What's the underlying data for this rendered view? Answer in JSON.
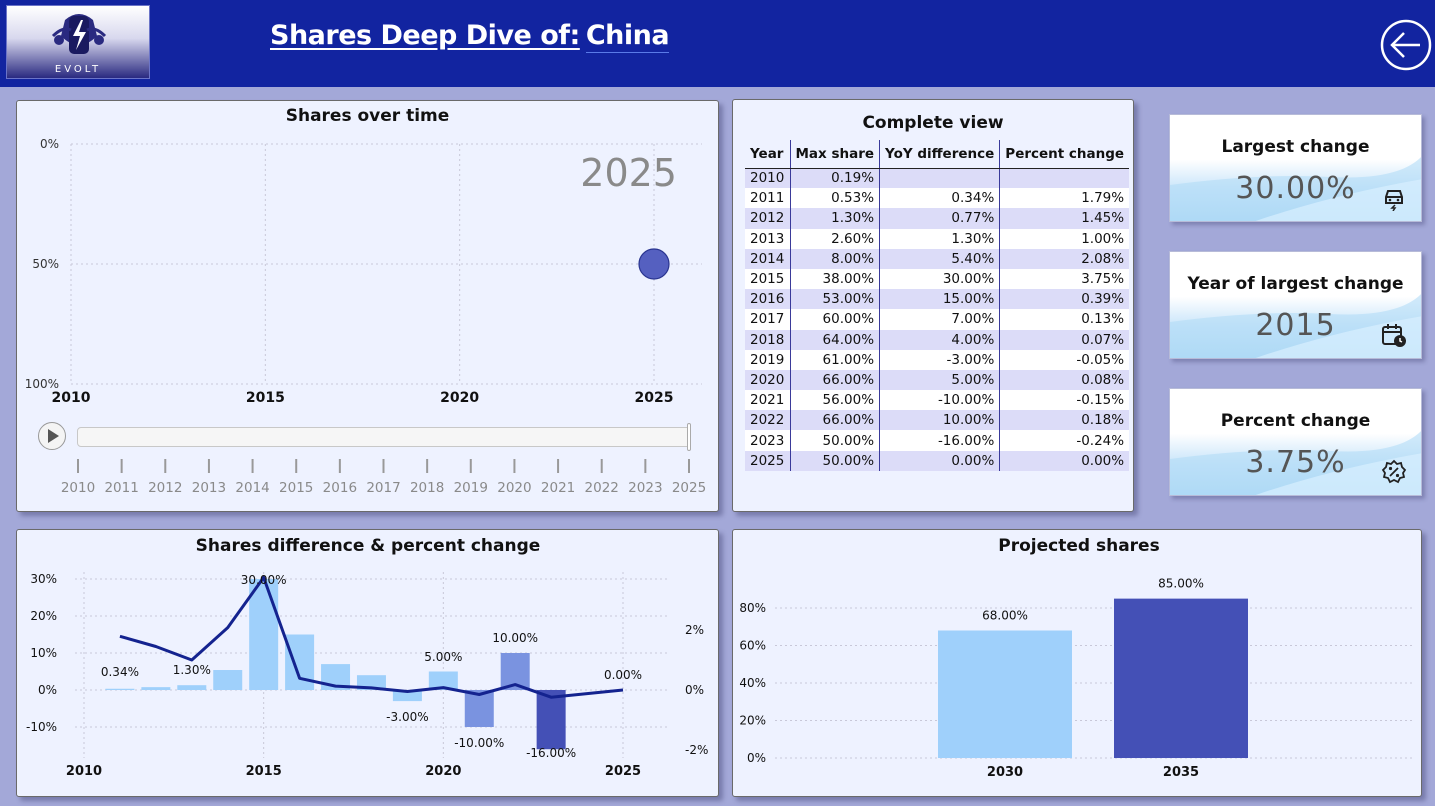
{
  "header": {
    "logo_text": "EVOLT",
    "title_prefix": "Shares Deep Dive of:",
    "country": "China",
    "back_button": "back-arrow-icon"
  },
  "shares_over_time": {
    "title": "Shares over time",
    "current_year": "2025",
    "y_ticks": [
      "100%",
      "50%",
      "0%"
    ],
    "x_ticks": [
      "2010",
      "2015",
      "2020",
      "2025"
    ],
    "timeline_years": [
      "2010",
      "2011",
      "2012",
      "2013",
      "2014",
      "2015",
      "2016",
      "2017",
      "2018",
      "2019",
      "2020",
      "2021",
      "2022",
      "2023",
      "2025"
    ],
    "point": {
      "year": 2025,
      "share": 50
    },
    "play_button": "play-icon"
  },
  "complete_view": {
    "title": "Complete view",
    "columns": [
      "Year",
      "Max share",
      "YoY difference",
      "Percent change"
    ],
    "rows": [
      [
        "2010",
        "0.19%",
        "",
        ""
      ],
      [
        "2011",
        "0.53%",
        "0.34%",
        "1.79%"
      ],
      [
        "2012",
        "1.30%",
        "0.77%",
        "1.45%"
      ],
      [
        "2013",
        "2.60%",
        "1.30%",
        "1.00%"
      ],
      [
        "2014",
        "8.00%",
        "5.40%",
        "2.08%"
      ],
      [
        "2015",
        "38.00%",
        "30.00%",
        "3.75%"
      ],
      [
        "2016",
        "53.00%",
        "15.00%",
        "0.39%"
      ],
      [
        "2017",
        "60.00%",
        "7.00%",
        "0.13%"
      ],
      [
        "2018",
        "64.00%",
        "4.00%",
        "0.07%"
      ],
      [
        "2019",
        "61.00%",
        "-3.00%",
        "-0.05%"
      ],
      [
        "2020",
        "66.00%",
        "5.00%",
        "0.08%"
      ],
      [
        "2021",
        "56.00%",
        "-10.00%",
        "-0.15%"
      ],
      [
        "2022",
        "66.00%",
        "10.00%",
        "0.18%"
      ],
      [
        "2023",
        "50.00%",
        "-16.00%",
        "-0.24%"
      ],
      [
        "2025",
        "50.00%",
        "0.00%",
        "0.00%"
      ]
    ]
  },
  "kpis": {
    "largest_change": {
      "label": "Largest change",
      "value": "30.00%",
      "icon": "car-charging-icon"
    },
    "year_largest": {
      "label": "Year of largest change",
      "value": "2015",
      "icon": "calendar-clock-icon"
    },
    "percent_change": {
      "label": "Percent change",
      "value": "3.75%",
      "icon": "percent-badge-icon"
    }
  },
  "colors": {
    "header_bg": "#1224a0",
    "bar_light": "#9fd0fb",
    "bar_mid": "#7a93e0",
    "bar_dark": "#4450b6",
    "line": "#14238f",
    "dot": "#5560c0"
  },
  "chart_data": [
    {
      "type": "scatter",
      "title": "Shares over time",
      "x": [
        2025
      ],
      "y": [
        50
      ],
      "xlim": [
        2010,
        2025
      ],
      "ylim": [
        0,
        100
      ],
      "x_ticks": [
        "2010",
        "2015",
        "2020",
        "2025"
      ],
      "y_ticks": [
        "0%",
        "50%",
        "100%"
      ],
      "annotation": "2025",
      "grid": true
    },
    {
      "type": "bar",
      "title": "Shares difference & percent change",
      "x": [
        2011,
        2012,
        2013,
        2014,
        2015,
        2016,
        2017,
        2018,
        2019,
        2020,
        2021,
        2022,
        2023,
        2025
      ],
      "series": [
        {
          "values": [
            0.34,
            0.77,
            1.3,
            5.4,
            30.0,
            15.0,
            7.0,
            4.0,
            -3.0,
            5.0,
            -10.0,
            10.0,
            -16.0,
            0.0
          ],
          "axis": "left"
        },
        {
          "type": "line",
          "values": [
            1.79,
            1.45,
            1.0,
            2.08,
            3.75,
            0.39,
            0.13,
            0.07,
            -0.05,
            0.08,
            -0.15,
            0.18,
            -0.24,
            0.0
          ],
          "axis": "right"
        }
      ],
      "data_labels": [
        {
          "x": 2011,
          "text": "0.34%"
        },
        {
          "x": 2013,
          "text": "1.30%"
        },
        {
          "x": 2015,
          "text": "30.00%"
        },
        {
          "x": 2019,
          "text": "-3.00%"
        },
        {
          "x": 2020,
          "text": "5.00%"
        },
        {
          "x": 2021,
          "text": "-10.00%"
        },
        {
          "x": 2022,
          "text": "10.00%"
        },
        {
          "x": 2023,
          "text": "-16.00%"
        },
        {
          "x": 2025,
          "text": "0.00%"
        }
      ],
      "xlim": [
        2010,
        2025
      ],
      "ylim_left": [
        -15,
        30
      ],
      "ylim_right": [
        -2,
        3
      ],
      "x_ticks": [
        "2010",
        "2015",
        "2020",
        "2025"
      ],
      "y_ticks_left": [
        "-10%",
        "0%",
        "10%",
        "20%",
        "30%"
      ],
      "y_ticks_right": [
        "-2%",
        "0%",
        "2%"
      ],
      "grid": true
    },
    {
      "type": "bar",
      "title": "Projected shares",
      "categories": [
        "2030",
        "2035"
      ],
      "values": [
        68.0,
        85.0
      ],
      "data_labels": [
        "68.00%",
        "85.00%"
      ],
      "ylim": [
        0,
        90
      ],
      "y_ticks": [
        "0%",
        "20%",
        "40%",
        "60%",
        "80%"
      ],
      "grid": true
    }
  ]
}
